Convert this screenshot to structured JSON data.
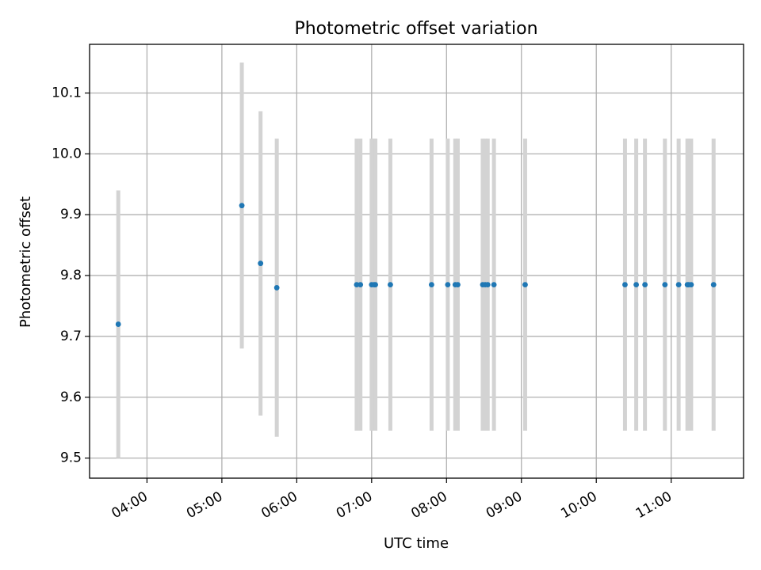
{
  "chart_data": {
    "type": "scatter",
    "title": "Photometric offset variation",
    "xlabel": "UTC time",
    "ylabel": "Photometric offset",
    "x_axis_type": "time",
    "xlim": [
      "03:14",
      "11:58"
    ],
    "ylim": [
      9.467,
      10.18
    ],
    "grid": true,
    "xticks": [
      "04:00",
      "05:00",
      "06:00",
      "07:00",
      "08:00",
      "09:00",
      "10:00",
      "11:00"
    ],
    "yticks": [
      "9.5",
      "9.6",
      "9.7",
      "9.8",
      "9.9",
      "10.0",
      "10.1"
    ],
    "colors": {
      "point": "#1f77b4",
      "errorbar": "#d3d3d3",
      "grid": "#b0b0b0",
      "axes": "#000000"
    },
    "series": [
      {
        "x": [
          "03:37",
          "05:16",
          "05:31",
          "05:44",
          "06:48",
          "06:51",
          "07:00",
          "07:02",
          "07:03",
          "07:15",
          "07:48",
          "08:01",
          "08:07",
          "08:09",
          "08:29",
          "08:31",
          "08:33",
          "08:38",
          "09:03",
          "10:23",
          "10:32",
          "10:39",
          "10:55",
          "11:06",
          "11:13",
          "11:14",
          "11:16",
          "11:34"
        ],
        "y": [
          9.72,
          9.915,
          9.82,
          9.78,
          9.785,
          9.785,
          9.785,
          9.785,
          9.785,
          9.785,
          9.785,
          9.785,
          9.785,
          9.785,
          9.785,
          9.785,
          9.785,
          9.785,
          9.785,
          9.785,
          9.785,
          9.785,
          9.785,
          9.785,
          9.785,
          9.785,
          9.785,
          9.785
        ],
        "y_low": [
          9.5,
          9.68,
          9.57,
          9.535,
          9.545,
          9.545,
          9.545,
          9.545,
          9.545,
          9.545,
          9.545,
          9.545,
          9.545,
          9.545,
          9.545,
          9.545,
          9.545,
          9.545,
          9.545,
          9.545,
          9.545,
          9.545,
          9.545,
          9.545,
          9.545,
          9.545,
          9.545,
          9.545
        ],
        "y_high": [
          9.94,
          10.15,
          10.07,
          10.025,
          10.025,
          10.025,
          10.025,
          10.025,
          10.025,
          10.025,
          10.025,
          10.025,
          10.025,
          10.025,
          10.025,
          10.025,
          10.025,
          10.025,
          10.025,
          10.025,
          10.025,
          10.025,
          10.025,
          10.025,
          10.025,
          10.025,
          10.025,
          10.025
        ]
      }
    ]
  }
}
